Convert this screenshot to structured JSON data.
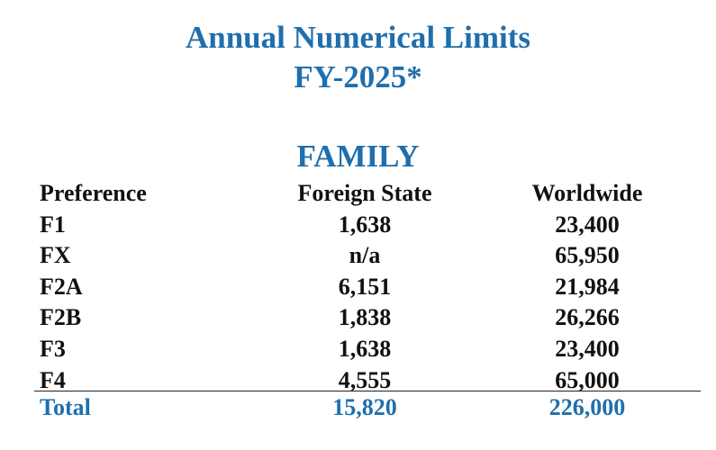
{
  "title": {
    "line1": "Annual Numerical Limits",
    "line2": "FY-2025*"
  },
  "section": "FAMILY",
  "table": {
    "headers": [
      "Preference",
      "Foreign State",
      "Worldwide"
    ],
    "rows": [
      {
        "preference": "F1",
        "foreign_state": "1,638",
        "worldwide": "23,400"
      },
      {
        "preference": "FX",
        "foreign_state": "n/a",
        "worldwide": "65,950"
      },
      {
        "preference": "F2A",
        "foreign_state": "6,151",
        "worldwide": "21,984"
      },
      {
        "preference": "F2B",
        "foreign_state": "1,838",
        "worldwide": "26,266"
      },
      {
        "preference": "F3",
        "foreign_state": "1,638",
        "worldwide": "23,400"
      },
      {
        "preference": "F4",
        "foreign_state": "4,555",
        "worldwide": "65,000"
      }
    ],
    "total": {
      "label": "Total",
      "foreign_state": "15,820",
      "worldwide": "226,000"
    }
  },
  "colors": {
    "accent": "#1f6fad",
    "text": "#111111"
  }
}
